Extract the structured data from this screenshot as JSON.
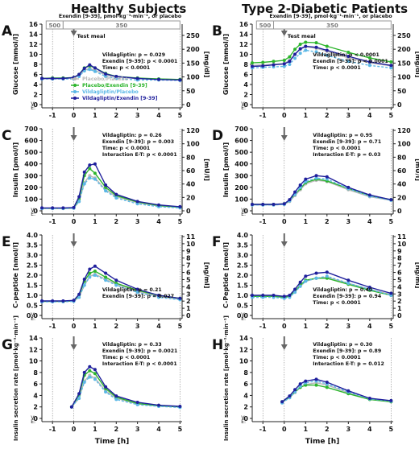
{
  "headers": {
    "left": "Healthy Subjects",
    "right": "Type 2-Diabetic Patients"
  },
  "exendin_label": "Exendin [9-39], pmol·kg⁻¹·min⁻¹, or placebo",
  "infusion": {
    "low": "500",
    "high": "350"
  },
  "test_meal": "Test meal",
  "xlabel": "Time [h]",
  "x_ticks": [
    -1,
    0,
    1,
    2,
    3,
    4,
    5
  ],
  "legend": [
    "Placebo/Placebo",
    "Placebo/Exendin [9-39]",
    "Vildagliptin/Placebo",
    "Vildagliptin/Exendin [9-39]"
  ],
  "sig_rows": {
    "v": "V:",
    "e": "E:"
  },
  "colors": {
    "placebo_placebo": "#b9b9b9",
    "placebo_exendin": "#2db52d",
    "vilda_placebo": "#5cb8e6",
    "vilda_exendin": "#1f1f9c"
  },
  "chart_data": [
    {
      "panel": "A",
      "type": "line",
      "ylabel": "Glucose [mmol/l]",
      "y2label": "[mg/dl]",
      "ylim": [
        0,
        16
      ],
      "yticks": [
        0,
        2,
        4,
        6,
        8,
        10,
        12,
        14,
        16
      ],
      "y2ticks": [
        0,
        50,
        100,
        150,
        200,
        250
      ],
      "x": [
        -1.5,
        -1,
        -0.5,
        0,
        0.25,
        0.5,
        0.75,
        1,
        1.5,
        2,
        3,
        4,
        5
      ],
      "series": [
        {
          "name": "Placebo/Placebo",
          "values": [
            5.2,
            5.2,
            5.2,
            5.3,
            5.8,
            6.8,
            7.2,
            6.8,
            5.9,
            5.5,
            5.2,
            5.1,
            5.0
          ]
        },
        {
          "name": "Placebo/Exendin [9-39]",
          "values": [
            5.2,
            5.3,
            5.3,
            5.4,
            6.0,
            7.3,
            7.7,
            7.3,
            6.2,
            5.6,
            5.3,
            5.1,
            5.0
          ]
        },
        {
          "name": "Vildagliptin/Placebo",
          "values": [
            5.1,
            5.1,
            5.1,
            5.1,
            5.6,
            6.7,
            7.0,
            6.6,
            5.6,
            5.2,
            4.9,
            4.9,
            4.8
          ]
        },
        {
          "name": "Vildagliptin/Exendin [9-39]",
          "values": [
            5.2,
            5.2,
            5.2,
            5.4,
            6.0,
            7.2,
            7.9,
            7.3,
            6.1,
            5.6,
            5.2,
            5.0,
            4.9
          ]
        }
      ],
      "stats": [
        "Vildagliptin: p = 0.029",
        "Exendin [9-39]: p < 0.0001",
        "Time: p < 0.0001"
      ]
    },
    {
      "panel": "B",
      "type": "line",
      "ylabel": "Glucose [mmol/l]",
      "y2label": "[mg/dl]",
      "ylim": [
        0,
        16
      ],
      "yticks": [
        0,
        2,
        4,
        6,
        8,
        10,
        12,
        14,
        16
      ],
      "y2ticks": [
        0,
        50,
        100,
        150,
        200,
        250
      ],
      "x": [
        -1.5,
        -1,
        -0.5,
        0,
        0.25,
        0.5,
        0.75,
        1,
        1.5,
        2,
        3,
        4,
        5
      ],
      "series": [
        {
          "name": "Placebo/Placebo",
          "values": [
            7.8,
            7.9,
            8.0,
            8.2,
            8.8,
            10.0,
            11.0,
            11.5,
            11.2,
            10.6,
            9.3,
            8.3,
            7.7
          ]
        },
        {
          "name": "Placebo/Exendin [9-39]",
          "values": [
            8.3,
            8.4,
            8.6,
            8.8,
            9.5,
            11.0,
            12.0,
            12.4,
            12.3,
            11.6,
            10.4,
            9.3,
            8.5
          ]
        },
        {
          "name": "Vildagliptin/Placebo",
          "values": [
            7.3,
            7.4,
            7.5,
            7.6,
            8.0,
            9.2,
            10.2,
            10.8,
            10.5,
            9.8,
            8.6,
            7.8,
            7.3
          ]
        },
        {
          "name": "Vildagliptin/Exendin [9-39]",
          "values": [
            7.6,
            7.7,
            7.9,
            8.1,
            8.6,
            10.0,
            11.1,
            11.6,
            11.4,
            10.8,
            9.6,
            8.5,
            7.8
          ]
        }
      ],
      "stats": [
        "Vildagliptin: p < 0.0001",
        "Exendin [9-39]: p < 0.0001",
        "Time: p < 0.0001"
      ]
    },
    {
      "panel": "C",
      "type": "line",
      "ylabel": "Insulin [pmol/l]",
      "y2label": "[mU/l]",
      "ylim": [
        0,
        700
      ],
      "yticks": [
        0,
        100,
        200,
        300,
        400,
        500,
        600,
        700
      ],
      "y2ticks": [
        0,
        20,
        40,
        60,
        80,
        100,
        120
      ],
      "x": [
        -1.5,
        -1,
        -0.5,
        0,
        0.25,
        0.5,
        0.75,
        1,
        1.5,
        2,
        3,
        4,
        5
      ],
      "series": [
        {
          "name": "Placebo/Placebo",
          "values": [
            20,
            20,
            20,
            22,
            80,
            240,
            300,
            280,
            180,
            120,
            70,
            40,
            30
          ]
        },
        {
          "name": "Placebo/Exendin [9-39]",
          "values": [
            22,
            22,
            22,
            25,
            100,
            300,
            360,
            320,
            200,
            130,
            75,
            45,
            30
          ]
        },
        {
          "name": "Vildagliptin/Placebo",
          "values": [
            20,
            20,
            20,
            22,
            80,
            230,
            280,
            270,
            170,
            110,
            60,
            35,
            25
          ]
        },
        {
          "name": "Vildagliptin/Exendin [9-39]",
          "values": [
            25,
            25,
            25,
            28,
            120,
            330,
            390,
            400,
            220,
            140,
            80,
            50,
            35
          ]
        }
      ],
      "stats": [
        "Vildagliptin: p = 0.26",
        "Exendin [9-39]: p = 0.003",
        "Time: p < 0.0001",
        "Interaction E-T: p < 0.0001"
      ]
    },
    {
      "panel": "D",
      "type": "line",
      "ylabel": "Insulin [pmol/l]",
      "y2label": "[mU/l]",
      "ylim": [
        0,
        700
      ],
      "yticks": [
        0,
        100,
        200,
        300,
        400,
        500,
        600,
        700
      ],
      "y2ticks": [
        0,
        20,
        40,
        60,
        80,
        100,
        120
      ],
      "x": [
        -1.5,
        -1,
        -0.5,
        0,
        0.25,
        0.5,
        0.75,
        1,
        1.5,
        2,
        3,
        4,
        5
      ],
      "series": [
        {
          "name": "Placebo/Placebo",
          "values": [
            50,
            50,
            50,
            55,
            80,
            130,
            180,
            230,
            260,
            250,
            180,
            120,
            90
          ]
        },
        {
          "name": "Placebo/Exendin [9-39]",
          "values": [
            55,
            55,
            55,
            60,
            90,
            140,
            190,
            240,
            270,
            255,
            190,
            130,
            95
          ]
        },
        {
          "name": "Vildagliptin/Placebo",
          "values": [
            50,
            50,
            50,
            55,
            85,
            140,
            200,
            250,
            280,
            270,
            190,
            125,
            90
          ]
        },
        {
          "name": "Vildagliptin/Exendin [9-39]",
          "values": [
            55,
            55,
            55,
            60,
            95,
            160,
            220,
            270,
            300,
            290,
            200,
            135,
            95
          ]
        }
      ],
      "stats": [
        "Vildagliptin: p = 0.95",
        "Exendin [9-39]: p = 0.71",
        "Time: p < 0.0001",
        "Interaction E-T: p = 0.03"
      ]
    },
    {
      "panel": "E",
      "type": "line",
      "ylabel": "C-peptide [nmol/l]",
      "y2label": "[ng/ml]",
      "ylim": [
        0,
        4
      ],
      "yticks": [
        0,
        0.5,
        1.0,
        1.5,
        2.0,
        2.5,
        3.0,
        3.5,
        4.0
      ],
      "y2ticks": [
        0,
        1,
        2,
        3,
        4,
        5,
        6,
        7,
        8,
        9,
        10,
        11
      ],
      "x": [
        -1.5,
        -1,
        -0.5,
        0,
        0.25,
        0.5,
        0.75,
        1,
        1.5,
        2,
        3,
        4,
        5
      ],
      "series": [
        {
          "name": "Placebo/Placebo",
          "values": [
            0.7,
            0.7,
            0.7,
            0.72,
            0.9,
            1.5,
            1.95,
            2.05,
            1.8,
            1.55,
            1.2,
            0.95,
            0.8
          ]
        },
        {
          "name": "Placebo/Exendin [9-39]",
          "values": [
            0.7,
            0.7,
            0.7,
            0.73,
            1.0,
            1.7,
            2.1,
            2.2,
            1.9,
            1.6,
            1.25,
            1.0,
            0.85
          ]
        },
        {
          "name": "Vildagliptin/Placebo",
          "values": [
            0.68,
            0.68,
            0.68,
            0.7,
            0.9,
            1.5,
            1.9,
            2.0,
            1.75,
            1.5,
            1.15,
            0.9,
            0.78
          ]
        },
        {
          "name": "Vildagliptin/Exendin [9-39]",
          "values": [
            0.72,
            0.72,
            0.72,
            0.75,
            1.05,
            1.8,
            2.3,
            2.45,
            2.1,
            1.75,
            1.3,
            1.0,
            0.85
          ]
        }
      ],
      "stats": [
        "Vildagliptin: p = 0.21",
        "Exendin [9-39]: p = 0.027"
      ]
    },
    {
      "panel": "F",
      "type": "line",
      "ylabel": "C-Peptide [nmol/l]",
      "y2label": "[ng/ml]",
      "ylim": [
        0,
        4
      ],
      "yticks": [
        0,
        0.5,
        1.0,
        1.5,
        2.0,
        2.5,
        3.0,
        3.5,
        4.0
      ],
      "y2ticks": [
        0,
        1,
        2,
        3,
        4,
        5,
        6,
        7,
        8,
        9,
        10,
        11
      ],
      "x": [
        -1.5,
        -1,
        -0.5,
        0,
        0.25,
        0.5,
        0.75,
        1,
        1.5,
        2,
        3,
        4,
        5
      ],
      "series": [
        {
          "name": "Placebo/Placebo",
          "values": [
            0.95,
            0.95,
            0.95,
            0.9,
            0.95,
            1.2,
            1.45,
            1.7,
            1.85,
            1.9,
            1.6,
            1.3,
            1.05
          ]
        },
        {
          "name": "Placebo/Exendin [9-39]",
          "values": [
            0.95,
            0.95,
            0.95,
            0.9,
            0.95,
            1.2,
            1.5,
            1.75,
            1.85,
            1.85,
            1.55,
            1.25,
            1.0
          ]
        },
        {
          "name": "Vildagliptin/Placebo",
          "values": [
            0.9,
            0.9,
            0.9,
            0.85,
            0.9,
            1.15,
            1.45,
            1.7,
            1.85,
            1.95,
            1.6,
            1.3,
            1.0
          ]
        },
        {
          "name": "Vildagliptin/Exendin [9-39]",
          "values": [
            1.0,
            1.0,
            1.0,
            0.95,
            1.0,
            1.3,
            1.65,
            1.95,
            2.1,
            2.15,
            1.75,
            1.4,
            1.1
          ]
        }
      ],
      "stats": [
        "Vildagliptin: p = 0.40",
        "Exendin [9-39]: p = 0.94",
        "Time: p < 0.0001"
      ]
    },
    {
      "panel": "G",
      "type": "line",
      "ylabel": "Insulin secretion rate [pmol·kg⁻¹·min⁻¹]",
      "ylim": [
        0,
        14
      ],
      "yticks": [
        0,
        2,
        4,
        6,
        8,
        10,
        12,
        14
      ],
      "x": [
        -0.1,
        0.25,
        0.5,
        0.75,
        1,
        1.5,
        2,
        3,
        4,
        5
      ],
      "series": [
        {
          "name": "Placebo/Placebo",
          "values": [
            2.0,
            3.5,
            6.5,
            7.5,
            7.0,
            4.8,
            3.5,
            2.5,
            2.2,
            2.0
          ]
        },
        {
          "name": "Placebo/Exendin [9-39]",
          "values": [
            2.0,
            4.0,
            7.5,
            8.3,
            7.8,
            5.2,
            3.7,
            2.6,
            2.2,
            2.0
          ]
        },
        {
          "name": "Vildagliptin/Placebo",
          "values": [
            2.0,
            3.5,
            6.3,
            7.2,
            6.8,
            4.6,
            3.3,
            2.4,
            2.1,
            1.9
          ]
        },
        {
          "name": "Vildagliptin/Exendin [9-39]",
          "values": [
            2.0,
            4.3,
            8.0,
            9.0,
            8.5,
            5.5,
            3.9,
            2.8,
            2.3,
            2.1
          ]
        }
      ],
      "stats": [
        "Vildagliptin: p = 0.33",
        "Exendin [9-39]: p = 0.0021",
        "Time: p < 0.0001",
        "Interaction E-T: p < 0.0001"
      ]
    },
    {
      "panel": "H",
      "type": "line",
      "ylabel": "Insulin secretion rate [pmol·kg⁻¹·min⁻¹]",
      "ylim": [
        0,
        14
      ],
      "yticks": [
        0,
        2,
        4,
        6,
        8,
        10,
        12,
        14
      ],
      "x": [
        -0.1,
        0.25,
        0.5,
        0.75,
        1,
        1.5,
        2,
        3,
        4,
        5
      ],
      "series": [
        {
          "name": "Placebo/Placebo",
          "values": [
            2.8,
            3.6,
            4.5,
            5.4,
            5.9,
            6.2,
            5.8,
            4.5,
            3.3,
            2.9
          ]
        },
        {
          "name": "Placebo/Exendin [9-39]",
          "values": [
            2.9,
            3.7,
            4.6,
            5.4,
            5.8,
            5.8,
            5.4,
            4.3,
            3.3,
            2.9
          ]
        },
        {
          "name": "Vildagliptin/Placebo",
          "values": [
            2.7,
            3.6,
            4.6,
            5.6,
            6.2,
            6.5,
            6.0,
            4.6,
            3.4,
            3.0
          ]
        },
        {
          "name": "Vildagliptin/Exendin [9-39]",
          "values": [
            2.9,
            3.9,
            5.0,
            6.0,
            6.5,
            6.8,
            6.3,
            4.8,
            3.5,
            3.1
          ]
        }
      ],
      "stats": [
        "Vildagliptin: p = 0.30",
        "Exendin [9-39]: p = 0.89",
        "Time: p < 0.0001",
        "Interaction E-T: p = 0.012"
      ]
    }
  ]
}
